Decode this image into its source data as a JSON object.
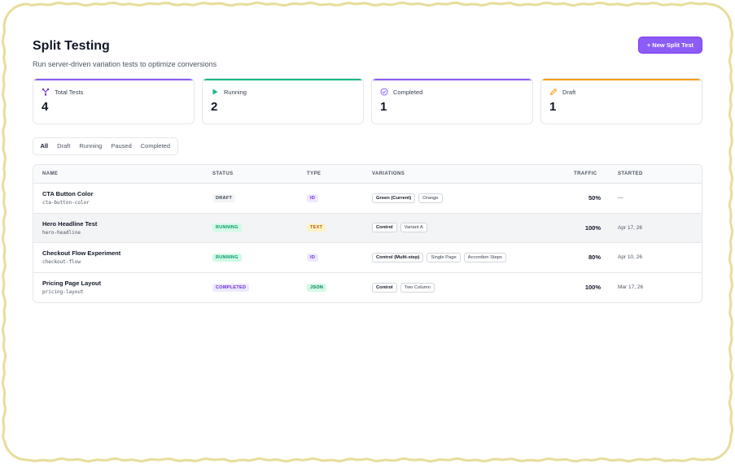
{
  "page": {
    "title": "Split Testing",
    "subtitle": "Run server-driven variation tests to optimize conversions",
    "new_button": "+ New Split Test"
  },
  "stats": [
    {
      "label": "Total Tests",
      "value": "4",
      "icon": "fork-icon",
      "color": "#6d28d9"
    },
    {
      "label": "Running",
      "value": "2",
      "icon": "play-icon",
      "color": "#10b981"
    },
    {
      "label": "Completed",
      "value": "1",
      "icon": "check-circle-icon",
      "color": "#8b5cf6"
    },
    {
      "label": "Draft",
      "value": "1",
      "icon": "pencil-icon",
      "color": "#f59e0b"
    }
  ],
  "tabs": [
    "All",
    "Draft",
    "Running",
    "Paused",
    "Completed"
  ],
  "active_tab": "All",
  "table": {
    "columns": [
      "NAME",
      "STATUS",
      "TYPE",
      "VARIATIONS",
      "TRAFFIC",
      "STARTED"
    ],
    "rows": [
      {
        "name": "CTA Button Color",
        "key": "cta-button-color",
        "status": "DRAFT",
        "type": "ID",
        "variations": [
          "Green (Current)",
          "Orange"
        ],
        "traffic": "50%",
        "started": "—"
      },
      {
        "name": "Hero Headline Test",
        "key": "hero-headline",
        "status": "RUNNING",
        "type": "TEXT",
        "variations": [
          "Control",
          "Variant A"
        ],
        "traffic": "100%",
        "started": "Apr 17, 26"
      },
      {
        "name": "Checkout Flow Experiment",
        "key": "checkout-flow",
        "status": "RUNNING",
        "type": "ID",
        "variations": [
          "Control (Multi-step)",
          "Single Page",
          "Accordion Steps"
        ],
        "traffic": "80%",
        "started": "Apr 10, 26"
      },
      {
        "name": "Pricing Page Layout",
        "key": "pricing-layout",
        "status": "COMPLETED",
        "type": "JSON",
        "variations": [
          "Control",
          "Two Column"
        ],
        "traffic": "100%",
        "started": "Mar 17, 26"
      }
    ]
  },
  "colors": {
    "accent": "#8b5cf6",
    "running": "#10b981",
    "draft": "#f59e0b",
    "frame": "#e8dc9c"
  }
}
